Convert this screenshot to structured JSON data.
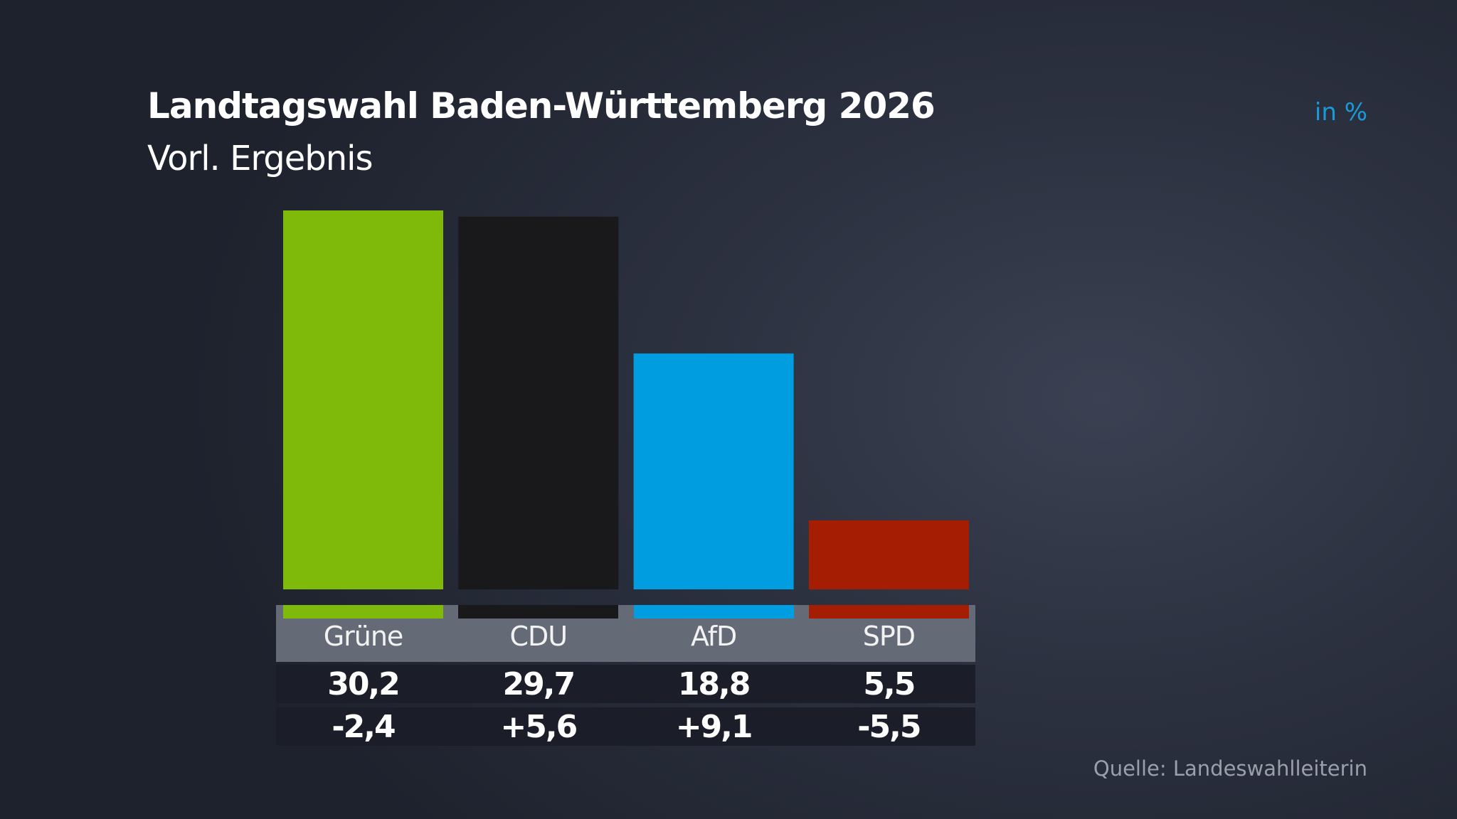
{
  "chart_data": {
    "type": "bar",
    "title": "Landtagswahl Baden-Württemberg 2026",
    "subtitle": "Vorl. Ergebnis",
    "unit": "in %",
    "categories": [
      "Grüne",
      "CDU",
      "AfD",
      "SPD"
    ],
    "values": [
      30.2,
      29.7,
      18.8,
      5.5
    ],
    "value_labels": [
      "30,2",
      "29,7",
      "18,8",
      "5,5"
    ],
    "changes": [
      -2.4,
      5.6,
      9.1,
      -5.5
    ],
    "change_labels": [
      "-2,4",
      "+5,6",
      "+9,1",
      "-5,5"
    ],
    "colors": [
      "#7fba0a",
      "#19191b",
      "#009ee0",
      "#a51d02"
    ],
    "ylim": [
      0,
      30.2
    ],
    "grid": false,
    "source": "Quelle: Landeswahlleiterin"
  }
}
